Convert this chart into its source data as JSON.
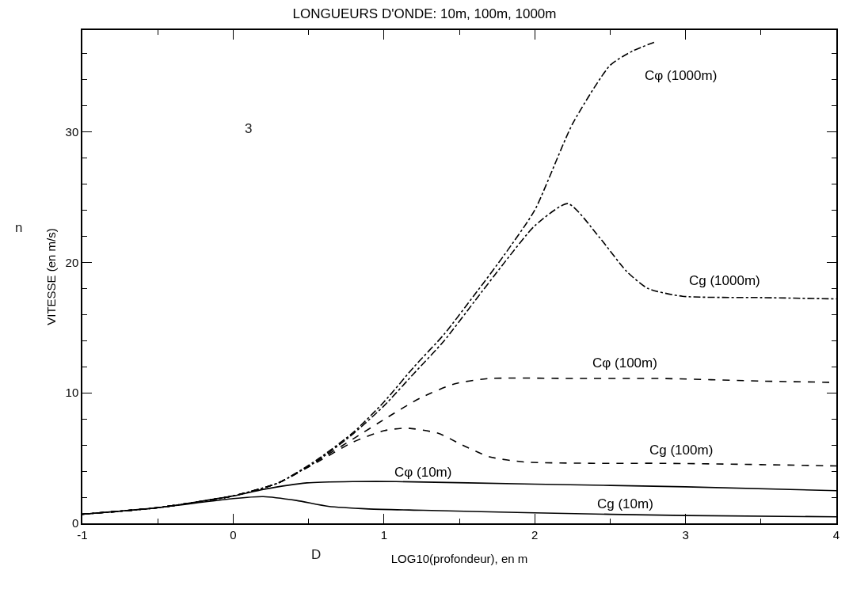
{
  "chart_data": {
    "type": "line",
    "title": "LONGUEURS D'ONDE: 10m, 100m, 1000m",
    "xlabel": "LOG10(profondeur), en m",
    "ylabel": "VITESSE (en m/s)",
    "xlim": [
      -1,
      4
    ],
    "ylim": [
      0,
      37.8
    ],
    "xticks": [
      -1,
      0,
      1,
      2,
      3,
      4
    ],
    "yticks": [
      0,
      10,
      20,
      30
    ],
    "legend": false,
    "marker": "none",
    "series": [
      {
        "name": "Cφ (1000m)",
        "color": "#000000",
        "line_style": "dashdot",
        "x": [
          -1,
          -0.5,
          0,
          0.3,
          0.56,
          0.8,
          1.0,
          1.2,
          1.4,
          1.6,
          1.8,
          2.0,
          2.25,
          2.5,
          2.65,
          2.8
        ],
        "values": [
          0.7,
          1.2,
          2.1,
          3.1,
          4.9,
          7.0,
          9.3,
          12.0,
          14.5,
          17.5,
          20.6,
          24.0,
          30.6,
          35.1,
          36.2,
          36.9
        ]
      },
      {
        "name": "Cg (1000m)",
        "color": "#000000",
        "line_style": "dashdot",
        "x": [
          -1,
          -0.5,
          0,
          0.3,
          0.56,
          0.8,
          1.0,
          1.2,
          1.4,
          1.6,
          1.8,
          2.0,
          2.22,
          2.43,
          2.61,
          2.75,
          2.98,
          3.5,
          4.0
        ],
        "values": [
          0.7,
          1.2,
          2.1,
          3.1,
          4.8,
          6.9,
          9.0,
          11.5,
          14.0,
          17.0,
          20.0,
          22.8,
          24.5,
          21.9,
          19.3,
          18.0,
          17.4,
          17.3,
          17.2
        ]
      },
      {
        "name": "Cφ (100m)",
        "color": "#000000",
        "line_style": "dashed",
        "x": [
          -1,
          -0.5,
          0,
          0.3,
          0.56,
          0.8,
          1.02,
          1.24,
          1.47,
          1.7,
          2.3,
          2.84,
          3.5,
          4.0
        ],
        "values": [
          0.7,
          1.2,
          2.1,
          3.1,
          4.8,
          6.5,
          8.1,
          9.6,
          10.7,
          11.1,
          11.1,
          11.1,
          10.9,
          10.8
        ]
      },
      {
        "name": "Cg (100m)",
        "color": "#000000",
        "line_style": "dashed",
        "x": [
          -1,
          -0.5,
          0,
          0.3,
          0.56,
          0.79,
          1.0,
          1.15,
          1.36,
          1.52,
          1.7,
          1.93,
          2.4,
          2.84,
          3.5,
          4.0
        ],
        "values": [
          0.7,
          1.2,
          2.1,
          3.1,
          4.7,
          6.2,
          7.1,
          7.3,
          6.9,
          6.0,
          5.1,
          4.7,
          4.6,
          4.6,
          4.5,
          4.4
        ]
      },
      {
        "name": "Cφ (10m)",
        "color": "#000000",
        "line_style": "solid",
        "x": [
          -1,
          -0.5,
          0,
          0.2,
          0.49,
          0.8,
          1.08,
          2.0,
          3.0,
          4.0
        ],
        "values": [
          0.7,
          1.2,
          2.1,
          2.6,
          3.1,
          3.2,
          3.2,
          3.0,
          2.8,
          2.5
        ]
      },
      {
        "name": "Cg (10m)",
        "color": "#000000",
        "line_style": "solid",
        "x": [
          -1,
          -0.5,
          0,
          0.2,
          0.42,
          0.63,
          0.9,
          1.26,
          2.0,
          3.0,
          4.0
        ],
        "values": [
          0.7,
          1.2,
          1.9,
          2.05,
          1.75,
          1.3,
          1.1,
          1.0,
          0.8,
          0.6,
          0.5
        ]
      }
    ],
    "annotations": [
      "3",
      "D",
      "n"
    ]
  }
}
